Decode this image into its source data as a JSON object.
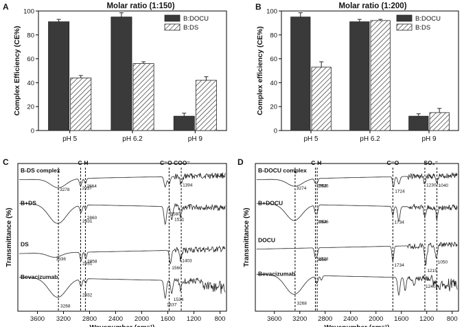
{
  "chart_data": [
    {
      "type": "bar",
      "panel": "A",
      "title": "Molar ratio (1:150)",
      "ylabel": "Complex Efficiency (CE%)",
      "xlabel": "",
      "ylim": [
        0,
        100
      ],
      "yticks": [
        0,
        20,
        40,
        60,
        80,
        100
      ],
      "categories": [
        "pH 5",
        "pH 6.2",
        "pH 9"
      ],
      "series": [
        {
          "name": "B:DOCU",
          "color": "#3a3a3a",
          "pattern": "solid",
          "values": [
            91,
            95,
            12
          ],
          "errors": [
            2,
            3.5,
            2.5
          ]
        },
        {
          "name": "B:DS",
          "color": "#ffffff",
          "pattern": "hatch",
          "values": [
            44,
            56,
            42
          ],
          "errors": [
            2,
            1.5,
            3
          ]
        }
      ]
    },
    {
      "type": "bar",
      "panel": "B",
      "title": "Molar ratio (1:200)",
      "ylabel": "Complex efficiency (CE%)",
      "xlabel": "",
      "ylim": [
        0,
        100
      ],
      "yticks": [
        0,
        20,
        40,
        60,
        80,
        100
      ],
      "categories": [
        "pH 5",
        "pH 6.2",
        "pH 9"
      ],
      "series": [
        {
          "name": "B:DOCU",
          "color": "#3a3a3a",
          "pattern": "solid",
          "values": [
            95,
            91,
            12
          ],
          "errors": [
            3.5,
            2,
            2
          ]
        },
        {
          "name": "B:DS",
          "color": "#ffffff",
          "pattern": "hatch",
          "values": [
            53,
            92,
            15
          ],
          "errors": [
            4.5,
            1,
            3.5
          ]
        }
      ]
    },
    {
      "type": "line",
      "panel": "C",
      "title": "",
      "xlabel": "Wavenumber (cm⁻¹)",
      "ylabel": "Transmittance (%)",
      "xlim": [
        3900,
        700
      ],
      "xticks": [
        3600,
        3200,
        2800,
        2400,
        2000,
        1600,
        1200,
        800
      ],
      "ref_lines": [
        3278,
        2937,
        2864,
        1580,
        1394
      ],
      "header_labels": [
        {
          "text": "C-H",
          "x": 2900
        },
        {
          "text": "C=O COO⁻",
          "x": 1490
        }
      ],
      "series": [
        {
          "name": "B-DS complex",
          "baseline": 0.92,
          "shape": "ds_complex",
          "peaks": [
            {
              "x": 3278,
              "label": "3278"
            },
            {
              "x": 2937,
              "label": "2937"
            },
            {
              "x": 2864,
              "label": "2864"
            },
            {
              "x": 1394,
              "label": "1394"
            }
          ]
        },
        {
          "name": "B+DS",
          "baseline": 0.7,
          "shape": "bds",
          "peaks": [
            {
              "x": 2931,
              "label": "2931"
            },
            {
              "x": 2860,
              "label": "2860"
            },
            {
              "x": 1521,
              "label": "1521"
            },
            {
              "x": 1580,
              "label": "1580"
            }
          ]
        },
        {
          "name": "DS",
          "baseline": 0.42,
          "shape": "ds",
          "peaks": [
            {
              "x": 3336,
              "label": "3336"
            },
            {
              "x": 2931,
              "label": "2931"
            },
            {
              "x": 2858,
              "label": "2858"
            },
            {
              "x": 1560,
              "label": "1560"
            },
            {
              "x": 1403,
              "label": "1403"
            }
          ]
        },
        {
          "name": "Bevacizumab",
          "baseline": 0.2,
          "shape": "beva",
          "peaks": [
            {
              "x": 3268,
              "label": "3268"
            },
            {
              "x": 2932,
              "label": "2932"
            },
            {
              "x": 1637,
              "label": "1637"
            },
            {
              "x": 1534,
              "label": "1534"
            }
          ]
        }
      ]
    },
    {
      "type": "line",
      "panel": "D",
      "title": "",
      "xlabel": "Wavenumber (cm⁻¹)",
      "ylabel": "Transmittance (%)",
      "xlim": [
        3900,
        700
      ],
      "xticks": [
        3600,
        3200,
        2800,
        2400,
        2000,
        1600,
        1200,
        800
      ],
      "ref_lines": [
        3274,
        2954,
        2926,
        1734,
        1230,
        1040
      ],
      "header_labels": [
        {
          "text": "C-H",
          "x": 2940
        },
        {
          "text": "C=O",
          "x": 1734
        },
        {
          "text": "SO₃⁻",
          "x": 1135
        }
      ],
      "series": [
        {
          "name": "B-DOCU complex",
          "baseline": 0.92,
          "shape": "docu_complex",
          "peaks": [
            {
              "x": 3274,
              "label": "3274"
            },
            {
              "x": 2954,
              "label": "2954"
            },
            {
              "x": 2926,
              "label": "2926"
            },
            {
              "x": 1724,
              "label": "1724"
            },
            {
              "x": 1230,
              "label": "1230"
            },
            {
              "x": 1040,
              "label": "1040"
            }
          ]
        },
        {
          "name": "B+DOCU",
          "baseline": 0.7,
          "shape": "bdocu",
          "peaks": [
            {
              "x": 2954,
              "label": "2954"
            },
            {
              "x": 2926,
              "label": "2926"
            },
            {
              "x": 1734,
              "label": "1734"
            }
          ]
        },
        {
          "name": "DOCU",
          "baseline": 0.45,
          "shape": "docu",
          "peaks": [
            {
              "x": 2956,
              "label": "2956"
            },
            {
              "x": 2928,
              "label": "2928"
            },
            {
              "x": 1734,
              "label": "1734"
            },
            {
              "x": 1215,
              "label": "1215"
            },
            {
              "x": 1050,
              "label": "1050"
            }
          ]
        },
        {
          "name": "Bevacizumab",
          "baseline": 0.22,
          "shape": "beva",
          "peaks": [
            {
              "x": 3268,
              "label": "3268"
            },
            {
              "x": 1240,
              "label": "1240"
            }
          ]
        }
      ]
    }
  ],
  "panels": {
    "a": {
      "letter": "A",
      "title": "Molar ratio (1:150)"
    },
    "b": {
      "letter": "B",
      "title": "Molar ratio (1:200)"
    },
    "c": {
      "letter": "C"
    },
    "d": {
      "letter": "D"
    }
  }
}
